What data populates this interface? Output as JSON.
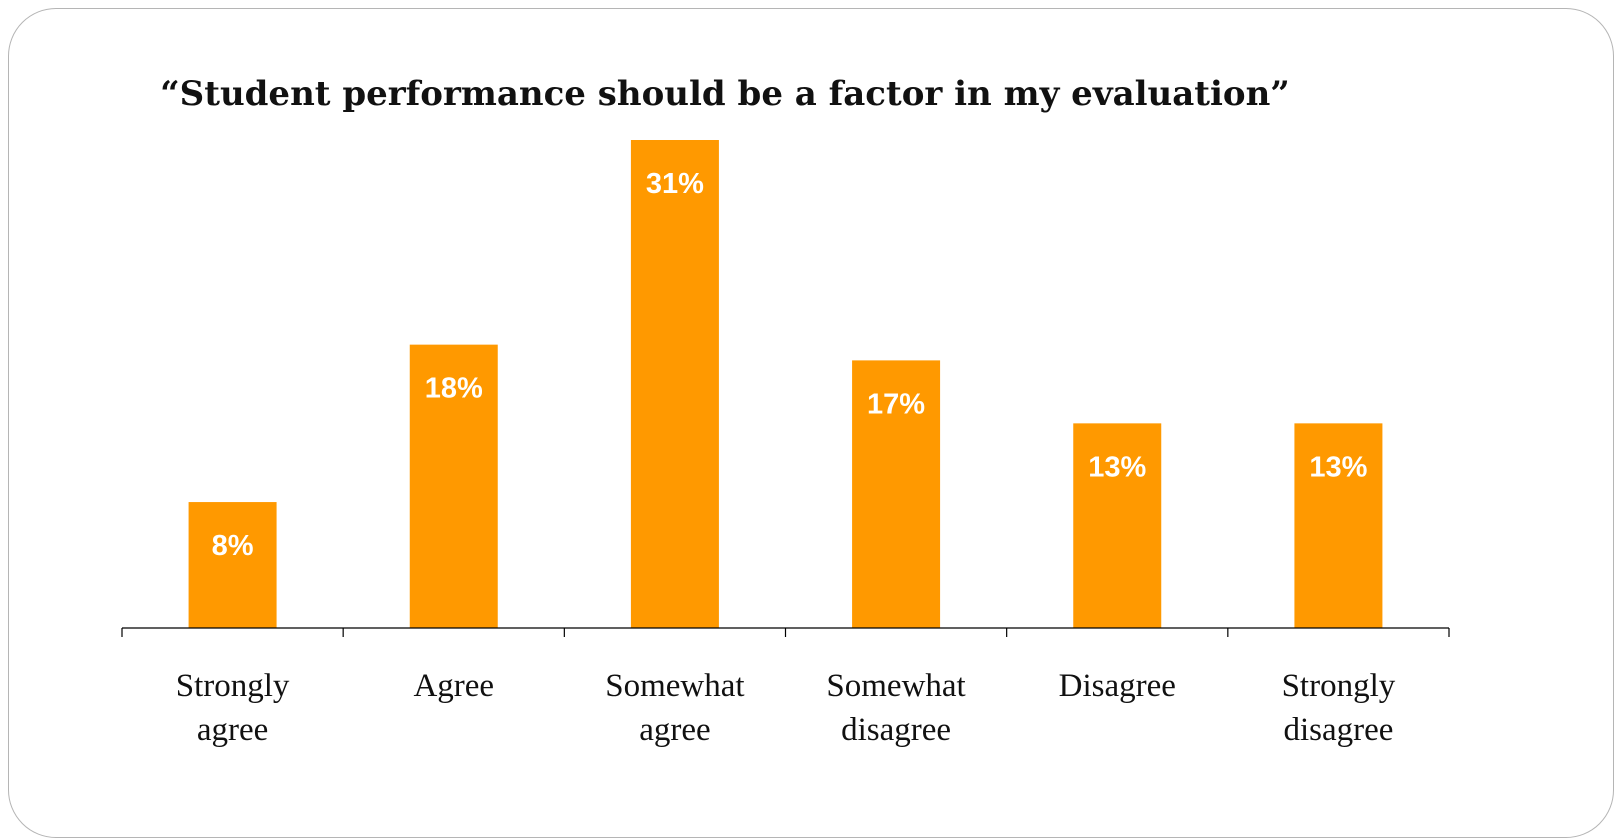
{
  "chart_data": {
    "type": "bar",
    "title": "“Student performance should be a factor in my evaluation”",
    "categories": [
      [
        "Strongly",
        "agree"
      ],
      [
        "Agree"
      ],
      [
        "Somewhat",
        "agree"
      ],
      [
        "Somewhat",
        "disagree"
      ],
      [
        "Disagree"
      ],
      [
        "Strongly",
        "disagree"
      ]
    ],
    "values": [
      8,
      18,
      31,
      17,
      13,
      13
    ],
    "value_labels": [
      "8%",
      "18%",
      "31%",
      "17%",
      "13%",
      "13%"
    ],
    "ylim": [
      0,
      31
    ],
    "grid": false,
    "legend": "none",
    "bar_color": "#FF9900"
  }
}
